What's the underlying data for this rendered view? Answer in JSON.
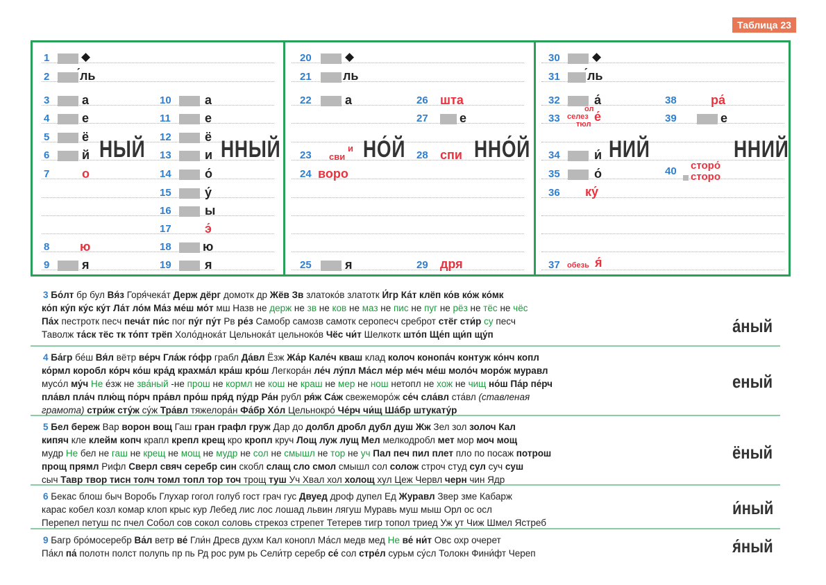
{
  "badge": "Таблица 23",
  "table": {
    "c1": {
      "n1": "1",
      "n2": "2",
      "l2": "́ль",
      "n3": "3",
      "l3": "а",
      "n4": "4",
      "l4": "е",
      "n5": "5",
      "l5": "ё",
      "n6": "6",
      "l6": "й",
      "n7": "7",
      "l7": "о",
      "n8": "8",
      "l8": "ю",
      "n9": "9",
      "l9": "я",
      "n10": "10",
      "l10": "а",
      "n11": "11",
      "l11": "е",
      "n12": "12",
      "l12": "ё",
      "n13": "13",
      "l13": "и",
      "n14": "14",
      "l14": "о́",
      "n15": "15",
      "l15": "у́",
      "n16": "16",
      "l16": "ы",
      "n17": "17",
      "l17": "э́",
      "n18": "18",
      "l18": "ю",
      "n19": "19",
      "l19": "я",
      "end1": "НЫЙ",
      "end2": "ННЫЙ"
    },
    "c2": {
      "n20": "20",
      "n21": "21",
      "l21": "ль",
      "n22": "22",
      "l22": "а",
      "n23": "23",
      "l23a": "и",
      "l23b": "сви",
      "n24": "24",
      "l24": "воро",
      "n25": "25",
      "l25": "я",
      "n26": "26",
      "l26": "шта",
      "n27": "27",
      "l27": "е",
      "n28": "28",
      "l28": "спи",
      "n29": "29",
      "l29": "дря",
      "end1": "НО́Й",
      "end2": "ННО́Й"
    },
    "c3": {
      "n30": "30",
      "n31": "31",
      "l31": "́ль",
      "n32": "32",
      "l32": "а́",
      "n33": "33",
      "l33a": "ол",
      "l33b": "селез",
      "l33c": "тюл",
      "l33d": "е́",
      "n34": "34",
      "l34": "и́",
      "n35": "35",
      "l35": "о́",
      "n36": "36",
      "l36": "ку́",
      "n37": "37",
      "l37a": "обезь",
      "l37b": "я́",
      "n38": "38",
      "l38": "ра́",
      "n39": "39",
      "l39": "е",
      "n40": "40",
      "l40a": "сторо́",
      "l40b": "сторо",
      "end1": "НИЙ",
      "end2": "ННИЙ"
    }
  },
  "sections": [
    {
      "num": "3",
      "ending": "а́ный",
      "lines": [
        [
          [
            "b",
            "Бо́лт"
          ],
          [
            "",
            "бр бул"
          ],
          [
            "b",
            "Вя́з"
          ],
          [
            "",
            "Горя́чека́т"
          ],
          [
            "b",
            "Держ дёрг"
          ],
          [
            "",
            "домотк др"
          ],
          [
            "b",
            "Жёв"
          ],
          [
            "b",
            "Зв"
          ],
          [
            "",
            "златоко́в златотк"
          ],
          [
            "b",
            "И́гр"
          ],
          [
            "b",
            "Ка́т клёп ко́в ко́ж ко́мк"
          ]
        ],
        [
          [
            "b",
            "ко́п ку́п ку́с ку́т"
          ],
          [
            "b",
            "Ла́т ло́м"
          ],
          [
            "b",
            "Ма́з ме́ш мо́т"
          ],
          [
            "",
            "мш  Назв"
          ],
          [
            "",
            "не"
          ],
          [
            "g",
            "держ"
          ],
          [
            "",
            "  не"
          ],
          [
            "g",
            "зв"
          ],
          [
            "",
            "  не"
          ],
          [
            "g",
            "ков"
          ],
          [
            "",
            "  не"
          ],
          [
            "g",
            "маз"
          ],
          [
            "",
            "  не"
          ],
          [
            "g",
            "пис"
          ],
          [
            "",
            "  не"
          ],
          [
            "g",
            "пуг"
          ],
          [
            "",
            "  не"
          ],
          [
            "g",
            "рёз"
          ],
          [
            "",
            "  не"
          ],
          [
            "g",
            "тёс"
          ],
          [
            "",
            "  не"
          ],
          [
            "g",
            "чёс"
          ]
        ],
        [
          [
            "b",
            "Па́х"
          ],
          [
            "",
            "пестротк  песч"
          ],
          [
            "b",
            "печа́т пи́с"
          ],
          [
            "",
            "пог"
          ],
          [
            "b",
            "пу́г пу́т"
          ],
          [
            "",
            "Рв"
          ],
          [
            "b",
            "ре́з"
          ],
          [
            "",
            "Самобр  самозв  самотк  серопесч  среброт"
          ],
          [
            "b",
            "стёг сти́р"
          ],
          [
            "g",
            "су"
          ],
          [
            "",
            "песч"
          ]
        ],
        [
          [
            "",
            "Таволж"
          ],
          [
            "b",
            "та́ск тёс тк то́пт трёп"
          ],
          [
            "",
            "Холо́днока́т  Цельнока́т  цельноко́в"
          ],
          [
            "b",
            "Чёс чи́т"
          ],
          [
            "",
            "Шелкотк"
          ],
          [
            "b",
            "што́п"
          ],
          [
            "b",
            "Ще́п щи́п щу́п"
          ]
        ]
      ]
    },
    {
      "num": "4",
      "ending": "еный",
      "lines": [
        [
          [
            "b",
            "Ба́гр"
          ],
          [
            "",
            "бе́ш"
          ],
          [
            "b",
            "Вя́л"
          ],
          [
            "",
            "вётр"
          ],
          [
            "b",
            "ве́рч"
          ],
          [
            "b",
            "Гла́ж го́фр"
          ],
          [
            "",
            "грабл"
          ],
          [
            "b",
            "Да́вл"
          ],
          [
            "",
            "Ёзж"
          ],
          [
            "b",
            "Жа́р"
          ],
          [
            "b",
            "Кале́ч кваш"
          ],
          [
            "",
            "клад"
          ],
          [
            "b",
            "колоч конопа́ч контуж ко́нч копл"
          ]
        ],
        [
          [
            "b",
            "ко́рмл коробл ко́рч ко́ш кра́д"
          ],
          [
            "b",
            "крахма́л кра́ш кро́ш"
          ],
          [
            "",
            "Легкора́н"
          ],
          [
            "b",
            "ле́ч лу́пл"
          ],
          [
            "b",
            "Ма́сл ме́р ме́ч ме́ш моло́ч моро́ж"
          ],
          [
            "b",
            "муравл"
          ]
        ],
        [
          [
            "",
            "мусо́л"
          ],
          [
            "b",
            "му́ч"
          ],
          [
            "g",
            "Не"
          ],
          [
            "",
            "е́зж  не"
          ],
          [
            "g",
            "зва́ный"
          ],
          [
            "",
            "-не"
          ],
          [
            "g",
            "прош"
          ],
          [
            "",
            "  не"
          ],
          [
            "g",
            "кормл"
          ],
          [
            "",
            "  не"
          ],
          [
            "g",
            "кош"
          ],
          [
            "",
            "  не"
          ],
          [
            "g",
            "краш"
          ],
          [
            "",
            "  не"
          ],
          [
            "g",
            "мер"
          ],
          [
            "",
            "  не"
          ],
          [
            "g",
            "нош"
          ],
          [
            "",
            "  нетопл  не"
          ],
          [
            "g",
            "хож"
          ],
          [
            "",
            "  не"
          ],
          [
            "g",
            "чищ"
          ],
          [
            "b",
            "но́ш"
          ],
          [
            "b",
            "Па́р пе́рч"
          ]
        ],
        [
          [
            "b",
            "пла́вл пла́ч плю́щ по́рч пра́вл про́ш пря́д пу́др"
          ],
          [
            "b",
            "Ра́н"
          ],
          [
            "",
            "рубл"
          ],
          [
            "b",
            "ря́ж"
          ],
          [
            "b",
            "Са́ж"
          ],
          [
            "",
            "свежеморо́ж"
          ],
          [
            "b",
            "се́ч сла́вл"
          ],
          [
            "",
            "ста́вл"
          ],
          [
            "i",
            "(ставленая"
          ]
        ],
        [
          [
            "i",
            "грамота)"
          ],
          [
            "b",
            "стри́ж сту́ж"
          ],
          [
            "",
            "су́ж"
          ],
          [
            "b",
            "Тра́вл"
          ],
          [
            "",
            "тяжелора́н"
          ],
          [
            "b",
            "Фа́бр"
          ],
          [
            "b",
            "Хо́л"
          ],
          [
            "",
            "Цельнокро́"
          ],
          [
            "b",
            "Че́рч чи́щ"
          ],
          [
            "b",
            "Ша́бр штукату́р"
          ]
        ]
      ]
    },
    {
      "num": "5",
      "ending": "ёный",
      "lines": [
        [
          [
            "b",
            "Бел береж"
          ],
          [
            "",
            "Вар"
          ],
          [
            "b",
            "ворон вощ"
          ],
          [
            "",
            "Гаш"
          ],
          [
            "b",
            "гран графл груж"
          ],
          [
            "",
            "Дар до"
          ],
          [
            "b",
            "долбл дробл дубл душ Жж"
          ],
          [
            "",
            "Зел зол"
          ],
          [
            "b",
            "золоч Кал"
          ]
        ],
        [
          [
            "b",
            "кипяч"
          ],
          [
            "",
            "кле"
          ],
          [
            "b",
            "клейм копч"
          ],
          [
            "",
            "крапл"
          ],
          [
            "b",
            "крепл крещ"
          ],
          [
            "",
            "кро"
          ],
          [
            "b",
            "кропл"
          ],
          [
            "",
            "круч"
          ],
          [
            "b",
            "Лощ луж лущ"
          ],
          [
            "b",
            "Мел"
          ],
          [
            "",
            "мелкодробл"
          ],
          [
            "b",
            "мет"
          ],
          [
            "",
            "мор"
          ],
          [
            "b",
            "моч мощ"
          ]
        ],
        [
          [
            "",
            "мудр"
          ],
          [
            "g",
            "Не"
          ],
          [
            "",
            "бел  не"
          ],
          [
            "g",
            "гаш"
          ],
          [
            "",
            "  не"
          ],
          [
            "g",
            "крещ"
          ],
          [
            "",
            "  не"
          ],
          [
            "g",
            "мощ"
          ],
          [
            "",
            "  не"
          ],
          [
            "g",
            "мудр"
          ],
          [
            "",
            "  не"
          ],
          [
            "g",
            "сол"
          ],
          [
            "",
            "  не"
          ],
          [
            "g",
            "смышл"
          ],
          [
            "",
            "  не"
          ],
          [
            "g",
            "тор"
          ],
          [
            "",
            "  не"
          ],
          [
            "g",
            "уч"
          ],
          [
            "b",
            "Пал печ пил плет"
          ],
          [
            "",
            "пло по посаж"
          ],
          [
            "b",
            "потрош"
          ]
        ],
        [
          [
            "b",
            "прощ прямл"
          ],
          [
            "",
            "Рифл"
          ],
          [
            "b",
            "Сверл свяч серебр син"
          ],
          [
            "",
            "скобл"
          ],
          [
            "b",
            "слащ сло смол"
          ],
          [
            "",
            "смышл сол"
          ],
          [
            "b",
            "солож"
          ],
          [
            "",
            "строч студ"
          ],
          [
            "b",
            "сул"
          ],
          [
            "",
            "суч"
          ],
          [
            "b",
            "суш"
          ]
        ],
        [
          [
            "",
            "сыч"
          ],
          [
            "b",
            "Тавр твор тисн толч томл топл тор точ"
          ],
          [
            "",
            "трощ"
          ],
          [
            "b",
            "туш"
          ],
          [
            "",
            "Уч  Хвал хол"
          ],
          [
            "b",
            "холощ"
          ],
          [
            "",
            "хул  Цеж  Червл"
          ],
          [
            "b",
            "черн"
          ],
          [
            "",
            "чин  Ядр"
          ]
        ]
      ]
    },
    {
      "num": "6",
      "ending": "и́ный",
      "lines": [
        [
          [
            "",
            "Бекас блош быч  Воробь  Глухар гогол голуб гост грач гус"
          ],
          [
            "b",
            "Двуед"
          ],
          [
            "",
            "дроф дупел  Ед"
          ],
          [
            "b",
            "Журавл"
          ],
          [
            "",
            "Звер зме  Кабарж"
          ]
        ],
        [
          [
            "",
            "карас кобел козл комар клоп крыс кур  Лебед лис лос лошад львин лягуш  Муравь муш мыш  Орл ос осл"
          ]
        ],
        [
          [
            "",
            "Перепел петуш пс пчел  Собол сов сокол соловь стрекоз стрепет  Тетерев тигр топол триед  Уж ут  Чиж  Шмел  Ястреб"
          ]
        ]
      ]
    },
    {
      "num": "9",
      "ending": "я́ный",
      "lines": [
        [
          [
            "",
            "Багр бро́мосеребр"
          ],
          [
            "b",
            "Ва́л"
          ],
          [
            "",
            "ветр"
          ],
          [
            "b",
            "ве́"
          ],
          [
            "",
            "Гли́н  Дресв духм  Кал конопл  Ма́сл медв мед"
          ],
          [
            "g",
            "Не"
          ],
          [
            "b",
            "ве́ ни́т"
          ],
          [
            "",
            "Овс охр очерет"
          ]
        ],
        [
          [
            "",
            "Па́кл"
          ],
          [
            "b",
            "па́"
          ],
          [
            "",
            "полотн полст полупь пр пь  Рд рос рум рь  Сели́тр серебр"
          ],
          [
            "b",
            "се́"
          ],
          [
            "",
            "сол"
          ],
          [
            "b",
            "стре́л"
          ],
          [
            "",
            "сурьм су́сл  Толокн  Фини́фт  Череп"
          ]
        ]
      ]
    }
  ]
}
